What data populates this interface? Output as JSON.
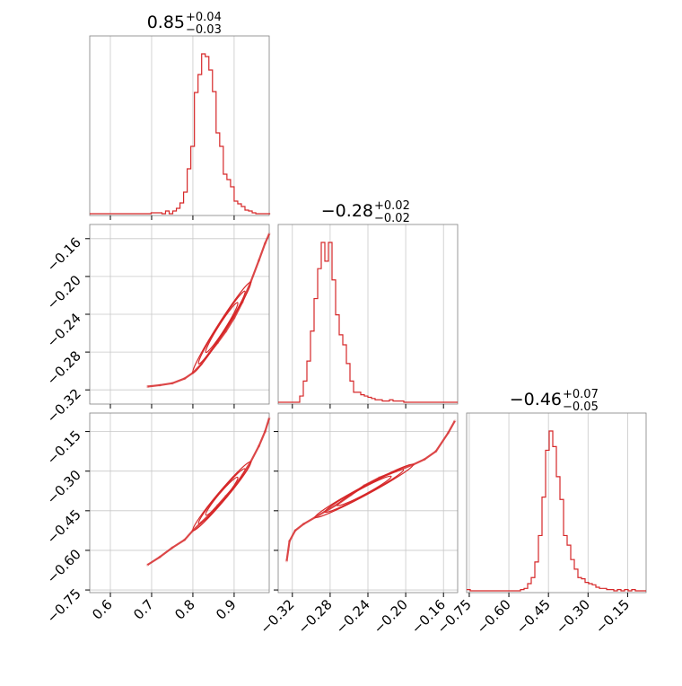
{
  "style": {
    "series_color": "#d62728",
    "grid_color": "#c8c8c8",
    "frame_color": "#808080"
  },
  "chart_data": {
    "type": "corner",
    "parameters": [
      {
        "range": [
          0.55,
          0.985
        ],
        "ticks": [
          0.6,
          0.7,
          0.8,
          0.9
        ],
        "tick_labels": [
          "0.6",
          "0.7",
          "0.8",
          "0.9"
        ]
      },
      {
        "range": [
          -0.335,
          -0.145
        ],
        "ticks": [
          -0.32,
          -0.28,
          -0.24,
          -0.2,
          -0.16
        ],
        "tick_labels": [
          "−0.32",
          "−0.28",
          "−0.24",
          "−0.20",
          "−0.16"
        ]
      },
      {
        "range": [
          -0.76,
          -0.08
        ],
        "ticks": [
          -0.75,
          -0.6,
          -0.45,
          -0.3,
          -0.15
        ],
        "tick_labels": [
          "−0.75",
          "−0.60",
          "−0.45",
          "−0.30",
          "−0.15"
        ]
      }
    ],
    "titles": [
      {
        "value": "0.85",
        "plus": "+0.04",
        "minus": "−0.03"
      },
      {
        "value": "−0.28",
        "plus": "+0.02",
        "minus": "−0.02"
      },
      {
        "value": "−0.46",
        "plus": "+0.07",
        "minus": "−0.05"
      }
    ],
    "histograms": [
      {
        "bin_start": 0.55,
        "bin_width": 0.00875,
        "counts": [
          0,
          0,
          0,
          0,
          0,
          0,
          0,
          0,
          0,
          0,
          0,
          0,
          0,
          0,
          0,
          0,
          0,
          1,
          1,
          1,
          0,
          3,
          0,
          3,
          6,
          12,
          24,
          50,
          75,
          135,
          155,
          178,
          175,
          160,
          136,
          90,
          75,
          44,
          38,
          30,
          14,
          11,
          8,
          4,
          3,
          1,
          0,
          0,
          0,
          0
        ]
      },
      {
        "bin_start": -0.335,
        "bin_width": 0.0038,
        "counts": [
          0,
          0,
          0,
          0,
          0,
          0,
          5,
          17,
          33,
          57,
          83,
          107,
          128,
          113,
          128,
          98,
          70,
          54,
          46,
          31,
          17,
          8,
          8,
          6,
          5,
          4,
          3,
          2,
          2,
          1,
          1,
          2,
          1,
          1,
          1,
          0,
          0,
          0,
          0,
          0,
          0,
          0,
          0,
          0,
          0,
          0,
          0,
          0,
          0,
          0
        ]
      },
      {
        "bin_start": -0.76,
        "bin_width": 0.0136,
        "counts": [
          1,
          0,
          0,
          0,
          0,
          0,
          0,
          0,
          0,
          0,
          0,
          0,
          0,
          0,
          0,
          1,
          2,
          6,
          11,
          24,
          46,
          78,
          117,
          133,
          120,
          95,
          76,
          46,
          38,
          26,
          18,
          11,
          10,
          7,
          6,
          5,
          3,
          2,
          2,
          1,
          1,
          0,
          1,
          0,
          1,
          0,
          1,
          0,
          0,
          0
        ]
      }
    ],
    "scatter": [
      {
        "x_param": 0,
        "y_param": 1,
        "points": [
          [
            0.69,
            -0.3165
          ],
          [
            0.72,
            -0.315
          ],
          [
            0.75,
            -0.313
          ],
          [
            0.78,
            -0.308
          ],
          [
            0.8,
            -0.302
          ],
          [
            0.82,
            -0.293
          ],
          [
            0.84,
            -0.281
          ],
          [
            0.86,
            -0.27
          ],
          [
            0.88,
            -0.258
          ],
          [
            0.9,
            -0.244
          ],
          [
            0.92,
            -0.227
          ],
          [
            0.94,
            -0.206
          ],
          [
            0.96,
            -0.183
          ],
          [
            0.975,
            -0.165
          ],
          [
            0.985,
            -0.155
          ]
        ]
      },
      {
        "x_param": 0,
        "y_param": 2,
        "points": [
          [
            0.69,
            -0.655
          ],
          [
            0.72,
            -0.625
          ],
          [
            0.75,
            -0.59
          ],
          [
            0.78,
            -0.56
          ],
          [
            0.8,
            -0.525
          ],
          [
            0.82,
            -0.495
          ],
          [
            0.84,
            -0.465
          ],
          [
            0.86,
            -0.43
          ],
          [
            0.88,
            -0.395
          ],
          [
            0.9,
            -0.36
          ],
          [
            0.92,
            -0.315
          ],
          [
            0.94,
            -0.265
          ],
          [
            0.96,
            -0.205
          ],
          [
            0.975,
            -0.15
          ],
          [
            0.985,
            -0.1
          ]
        ]
      },
      {
        "x_param": 1,
        "y_param": 2,
        "points": [
          [
            -0.326,
            -0.64
          ],
          [
            -0.323,
            -0.565
          ],
          [
            -0.317,
            -0.525
          ],
          [
            -0.308,
            -0.5
          ],
          [
            -0.296,
            -0.475
          ],
          [
            -0.284,
            -0.45
          ],
          [
            -0.272,
            -0.425
          ],
          [
            -0.258,
            -0.39
          ],
          [
            -0.244,
            -0.355
          ],
          [
            -0.228,
            -0.325
          ],
          [
            -0.21,
            -0.3
          ],
          [
            -0.192,
            -0.275
          ],
          [
            -0.18,
            -0.255
          ],
          [
            -0.168,
            -0.225
          ],
          [
            -0.155,
            -0.155
          ],
          [
            -0.148,
            -0.11
          ]
        ]
      }
    ]
  }
}
